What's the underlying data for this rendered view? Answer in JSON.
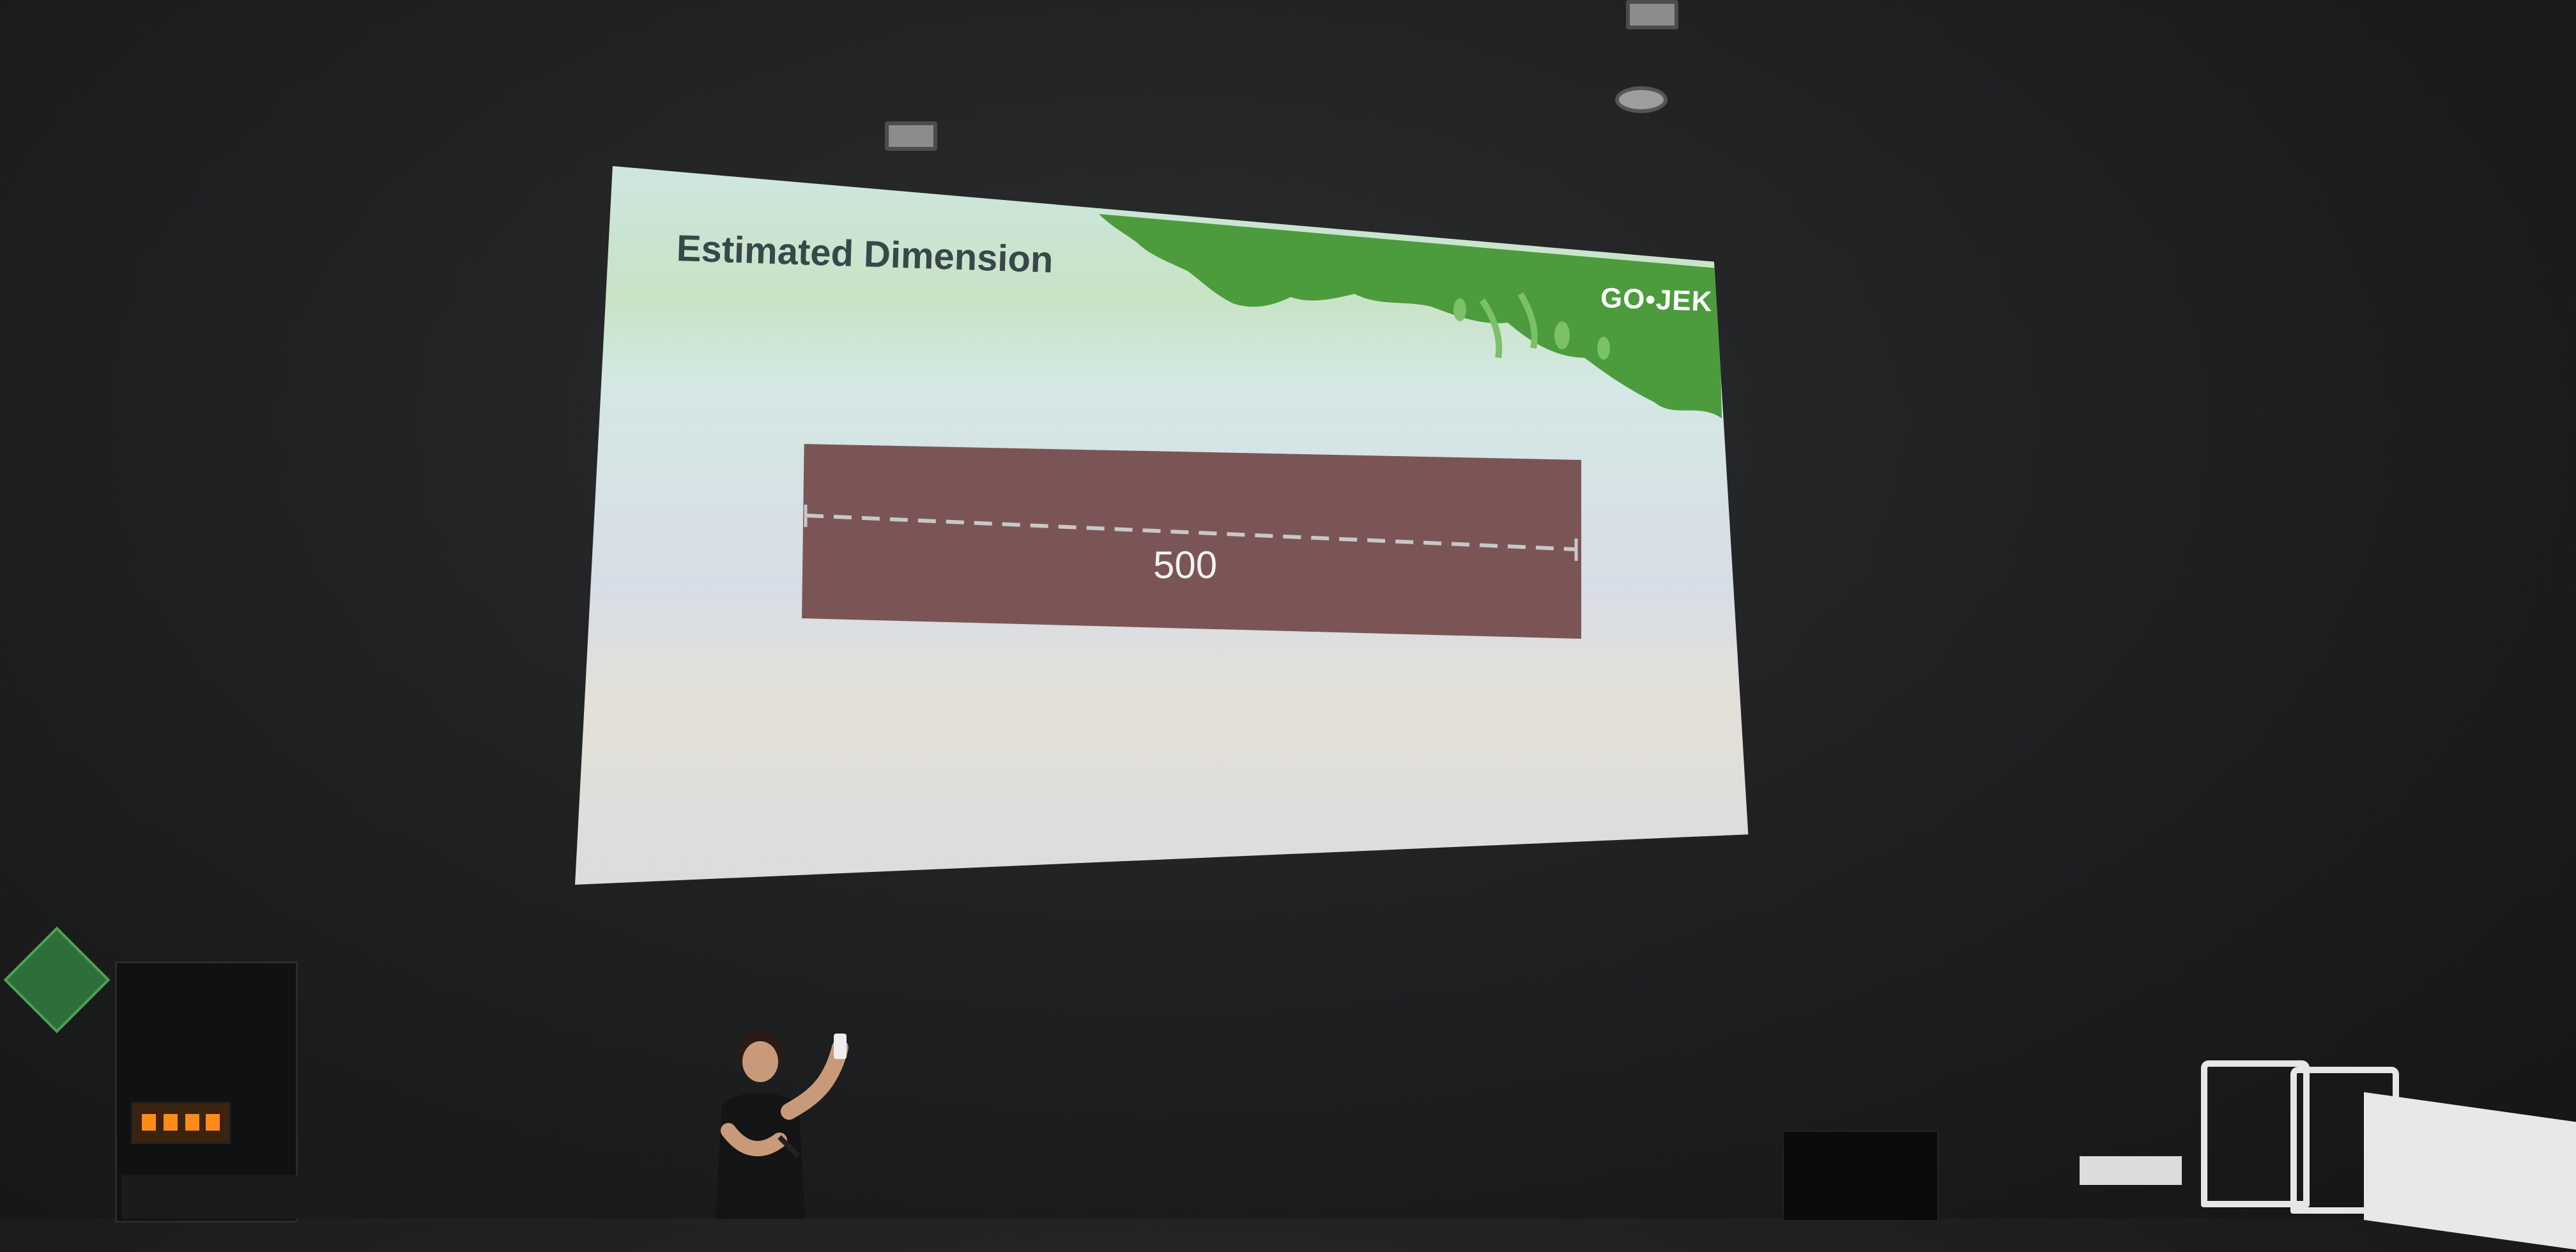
{
  "slide": {
    "title": "Estimated Dimension",
    "logo_text": "GO•JEK",
    "dimension_value": "500"
  },
  "colors": {
    "slide_bg": "#d7dde6",
    "grass_green": "#4c9b3c",
    "dimension_box": "#7b5555",
    "title_text": "#37474a"
  },
  "icons": [
    "ceiling-light-icon",
    "ceiling-light-icon",
    "ceiling-light-icon",
    "gojek-logo-icon"
  ]
}
